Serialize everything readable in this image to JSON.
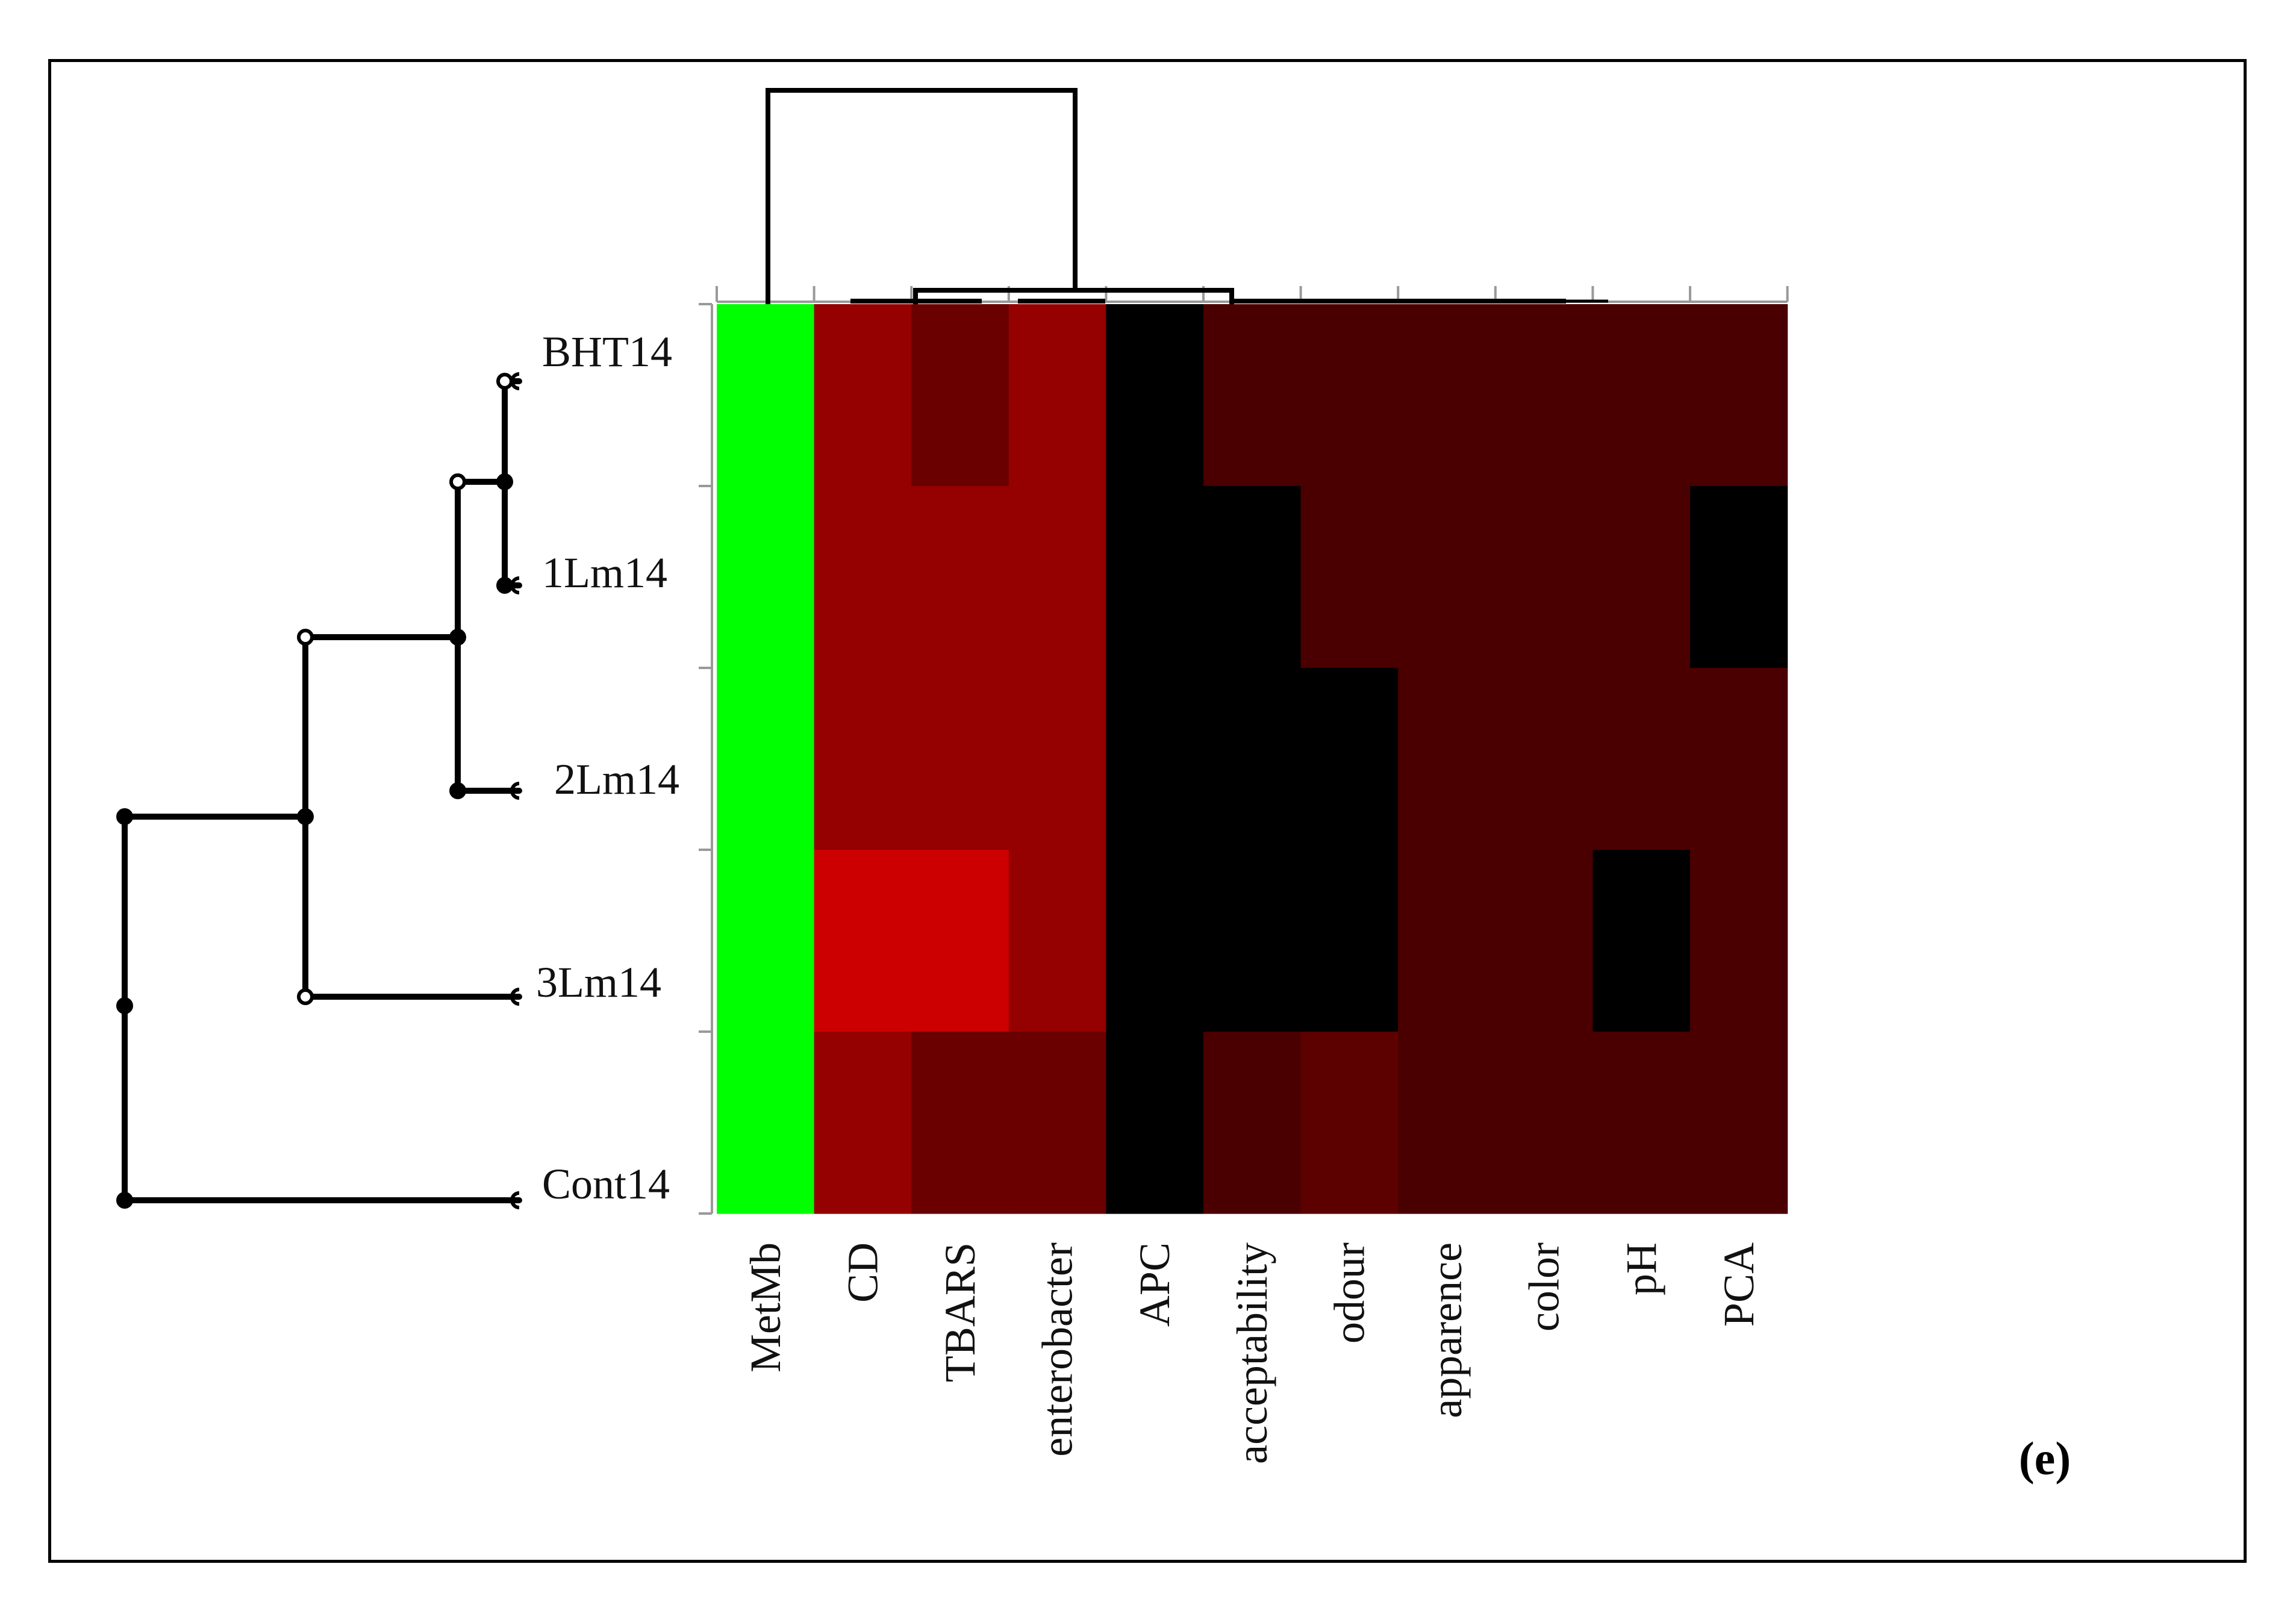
{
  "chart_data": {
    "type": "heatmap",
    "panel_label": "(e)",
    "rows": [
      "BHT14",
      "1Lm14",
      "2Lm14",
      "3Lm14",
      "Cont14"
    ],
    "columns": [
      "MetMb",
      "CD",
      "TBARS",
      "enterobacter",
      "APC",
      "acceptability",
      "odour",
      "apparence",
      "color",
      "pH",
      "PCA"
    ],
    "colors": {
      "G": "#00ff00",
      "R1": "#cc0000",
      "R2": "#950000",
      "R3": "#6a0000",
      "R4": "#5c0000",
      "D": "#4a0000",
      "K": "#000000"
    },
    "cells": [
      [
        "G",
        "R2",
        "R3",
        "R2",
        "K",
        "D",
        "D",
        "D",
        "D",
        "D",
        "D"
      ],
      [
        "G",
        "R2",
        "R2",
        "R2",
        "K",
        "K",
        "D",
        "D",
        "D",
        "D",
        "K"
      ],
      [
        "G",
        "R2",
        "R2",
        "R2",
        "K",
        "K",
        "K",
        "D",
        "D",
        "D",
        "D"
      ],
      [
        "G",
        "R1",
        "R1",
        "R2",
        "K",
        "K",
        "K",
        "D",
        "D",
        "K",
        "D"
      ],
      [
        "G",
        "R2",
        "R3",
        "R3",
        "K",
        "D",
        "R4",
        "D",
        "D",
        "D",
        "D"
      ]
    ],
    "row_dendrogram": "((((BHT14,1Lm14),2Lm14),3Lm14),Cont14)",
    "column_dendrogram": "(MetMb,(CD,TBARS,enterobacter,APC,acceptability,odour,apparence,color,pH,PCA))"
  }
}
